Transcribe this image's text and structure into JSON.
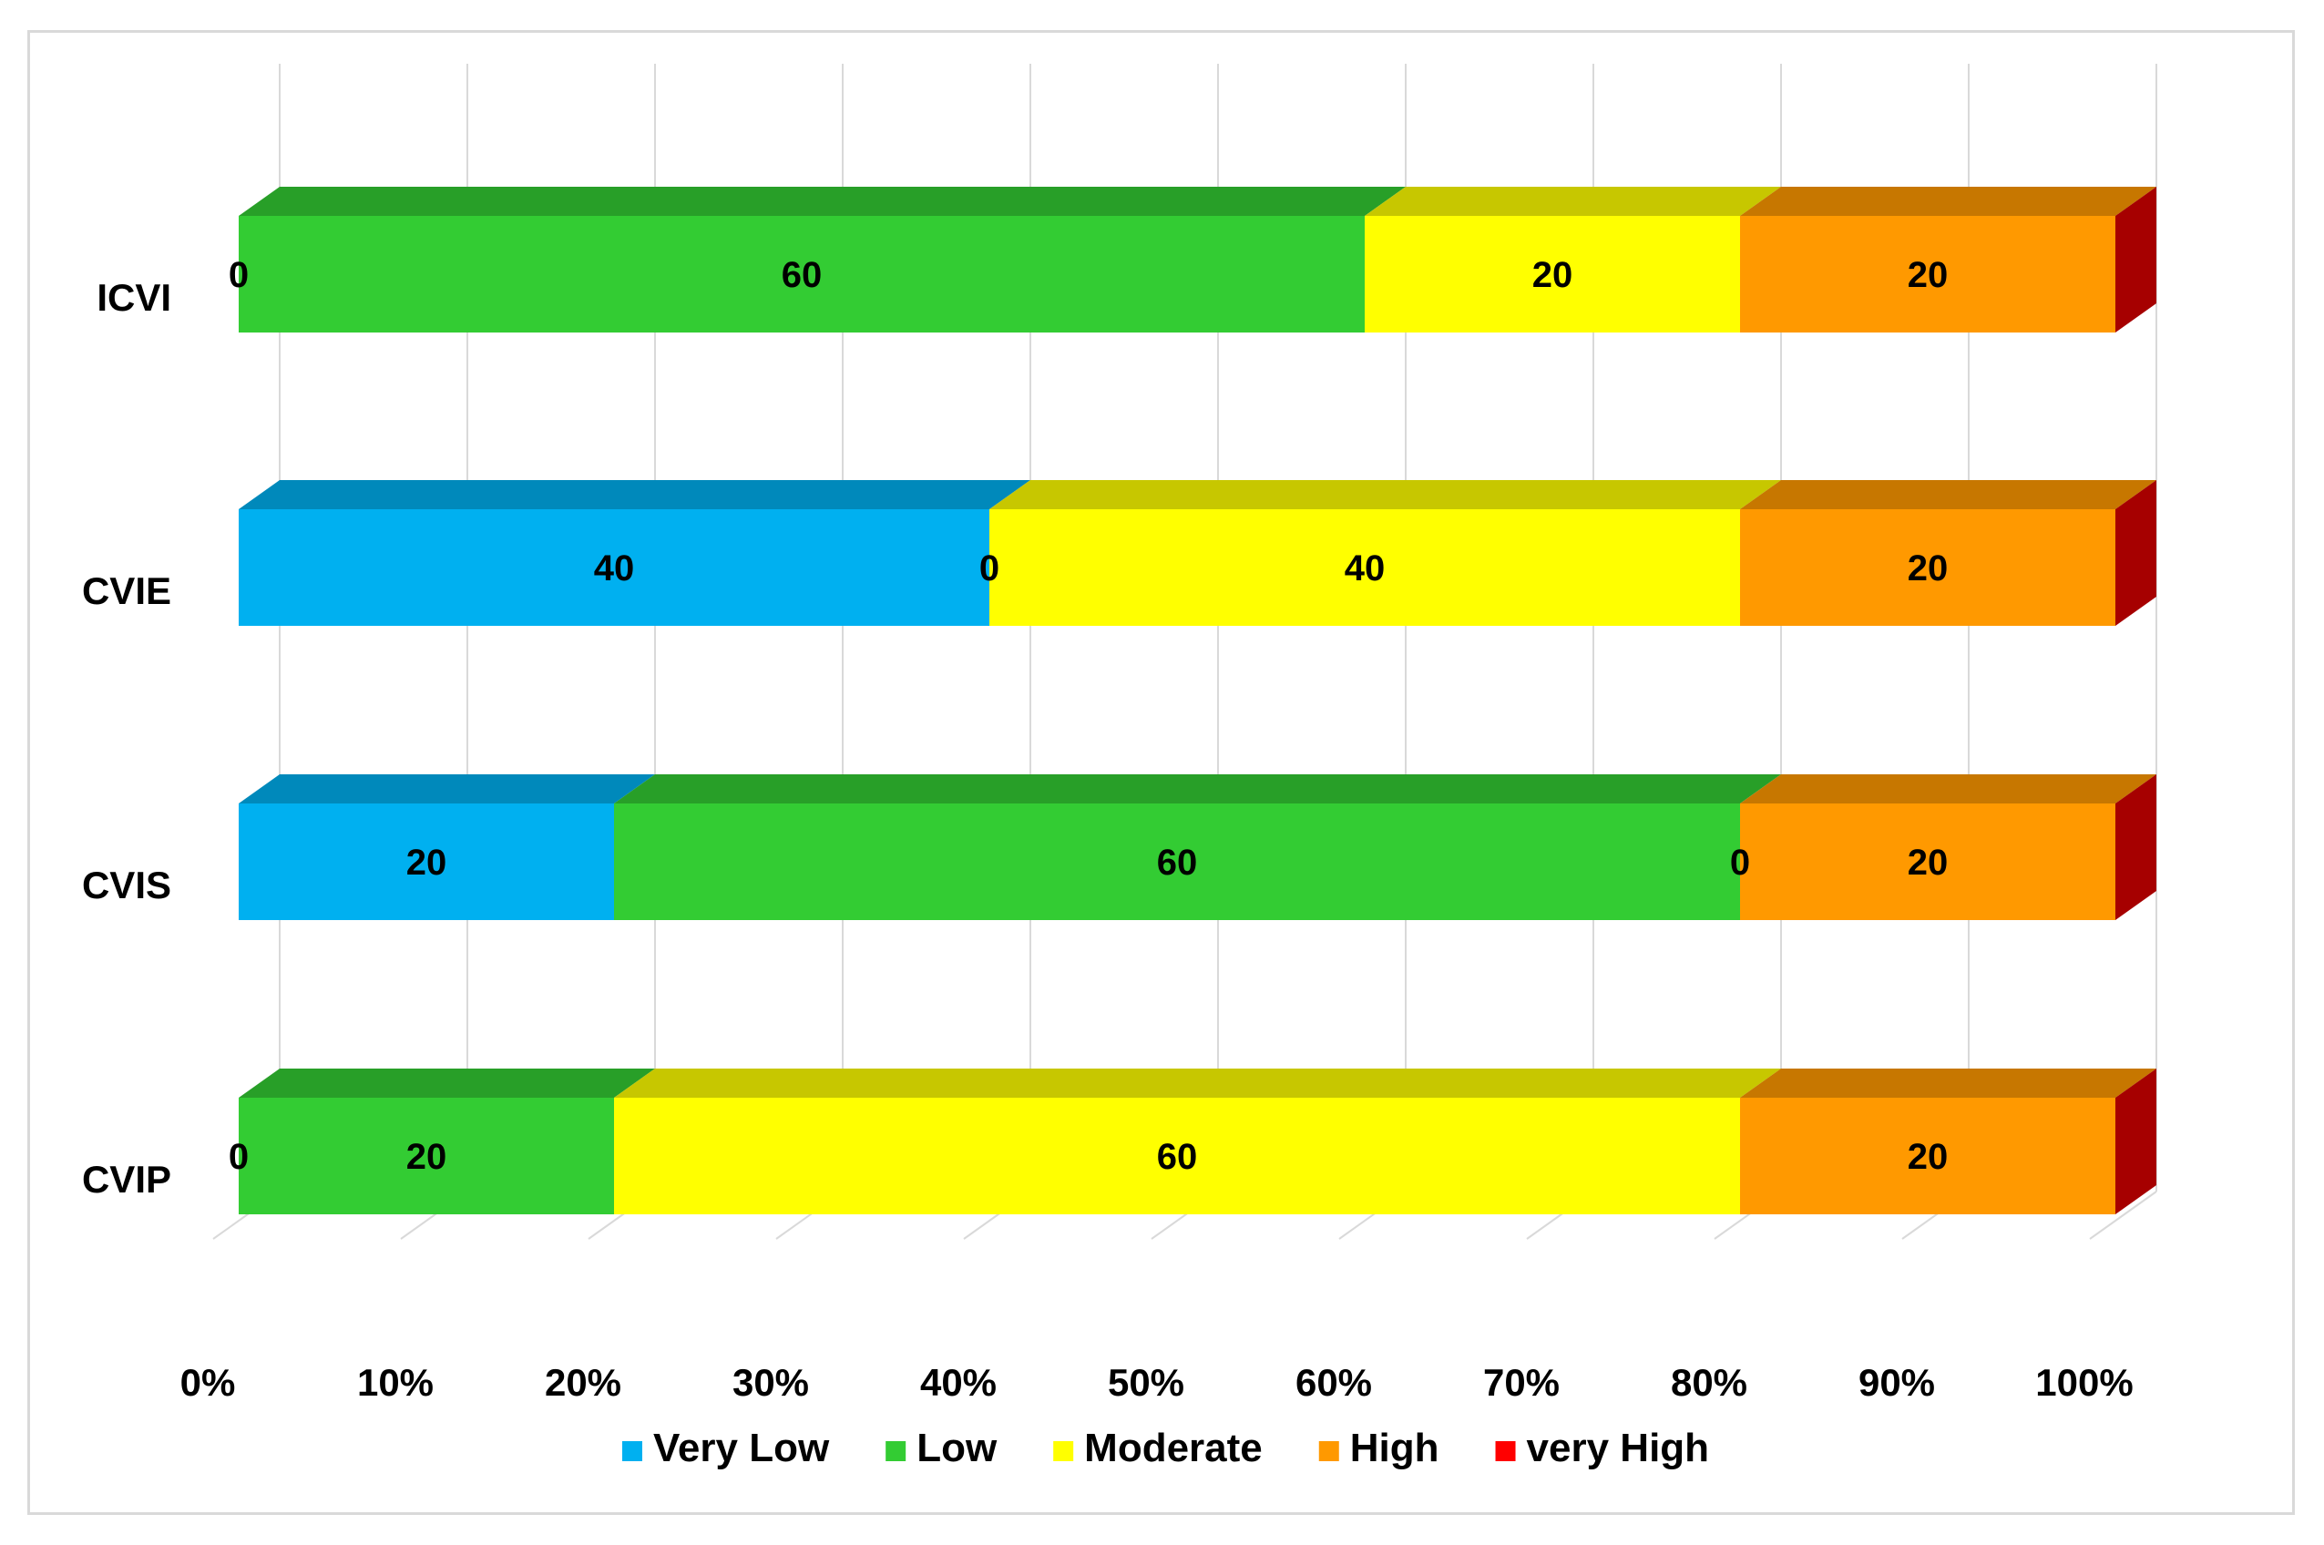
{
  "chart_data": {
    "type": "bar",
    "orientation": "horizontal",
    "stacked": "percent",
    "three_d": true,
    "title": "",
    "xlabel": "",
    "ylabel": "",
    "categories": [
      "ICVI",
      "CVIE",
      "CVIS",
      "CVIP"
    ],
    "xlim": [
      0,
      100
    ],
    "x_ticks": [
      "0%",
      "10%",
      "20%",
      "30%",
      "40%",
      "50%",
      "60%",
      "70%",
      "80%",
      "90%",
      "100%"
    ],
    "grid": "vertical",
    "legend_position": "bottom",
    "series": [
      {
        "name": "Very Low",
        "color": "#00b0f0",
        "values": [
          0,
          40,
          20,
          0
        ]
      },
      {
        "name": "Low",
        "color": "#33cc33",
        "values": [
          60,
          0,
          60,
          20
        ]
      },
      {
        "name": "Moderate",
        "color": "#ffff00",
        "values": [
          20,
          40,
          0,
          60
        ]
      },
      {
        "name": "High",
        "color": "#ff9900",
        "values": [
          20,
          20,
          20,
          20
        ]
      },
      {
        "name": "very High",
        "color": "#ff0000",
        "values": [
          0,
          0,
          0,
          0
        ]
      }
    ],
    "data_labels": [
      [
        "0",
        "60",
        "20",
        "20"
      ],
      [
        "40",
        "0",
        "40",
        "20"
      ],
      [
        "20",
        "60",
        "0",
        "20"
      ],
      [
        "0",
        "20",
        "60",
        "20"
      ]
    ],
    "data_label_display": [
      [
        true,
        true,
        true,
        true
      ],
      [
        true,
        true,
        true,
        true
      ],
      [
        true,
        true,
        true,
        true
      ],
      [
        true,
        true,
        true,
        true
      ]
    ]
  }
}
